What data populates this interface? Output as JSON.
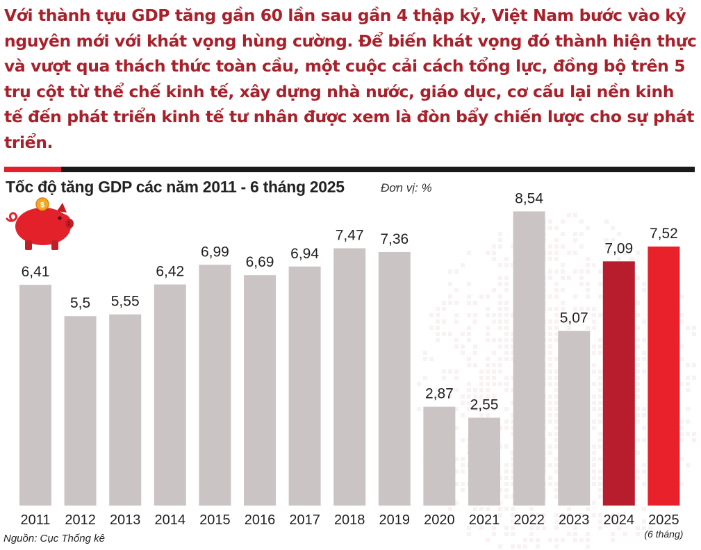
{
  "intro_text": "Với thành tựu GDP tăng gần 60 lần sau gần 4 thập kỷ, Việt Nam bước vào kỷ nguyên mới với khát vọng hùng cường. Để biến khát vọng đó thành hiện thực và vượt qua thách thức toàn cầu, một cuộc cải cách tổng lực, đồng bộ trên 5 trụ cột từ thể chế kinh tế, xây dựng nhà nước, giáo dục, cơ cấu lại nền kinh tế đến phát triển kinh tế tư nhân được xem là đòn bẩy chiến lược cho sự phát triển.",
  "source": "Nguồn: Cục Thống kê",
  "colors": {
    "intro_text": "#a8202a",
    "bar_default": "#cbc4c4",
    "bar_2024": "#b81d2e",
    "bar_2025": "#e8212b",
    "accent_red": "#e3212b",
    "rule_black": "#1a1a1a",
    "piggy": "#e3212b",
    "coin": "#f5a623"
  },
  "icons": {
    "piggy_bank": "piggy-bank-icon"
  },
  "chart_data": {
    "type": "bar",
    "title": "Tốc độ tăng GDP các năm 2011 - 6 tháng 2025",
    "unit_label": "Đơn vị: %",
    "xlabel": "",
    "ylabel": "",
    "ylim": [
      0,
      9.5
    ],
    "grid": false,
    "categories": [
      "2011",
      "2012",
      "2013",
      "2014",
      "2015",
      "2016",
      "2017",
      "2018",
      "2019",
      "2020",
      "2021",
      "2022",
      "2023",
      "2024",
      "2025"
    ],
    "category_notes": [
      "",
      "",
      "",
      "",
      "",
      "",
      "",
      "",
      "",
      "",
      "",
      "",
      "",
      "",
      "(6 tháng)"
    ],
    "values": [
      6.41,
      5.5,
      5.55,
      6.42,
      6.99,
      6.69,
      6.94,
      7.47,
      7.36,
      2.87,
      2.55,
      8.54,
      5.07,
      7.09,
      7.52
    ],
    "value_labels": [
      "6,41",
      "5,5",
      "5,55",
      "6,42",
      "6,99",
      "6,69",
      "6,94",
      "7,47",
      "7,36",
      "2,87",
      "2,55",
      "8,54",
      "5,07",
      "7,09",
      "7,52"
    ],
    "highlight": [
      "default",
      "default",
      "default",
      "default",
      "default",
      "default",
      "default",
      "default",
      "default",
      "default",
      "default",
      "default",
      "default",
      "bar_2024",
      "bar_2025"
    ]
  }
}
